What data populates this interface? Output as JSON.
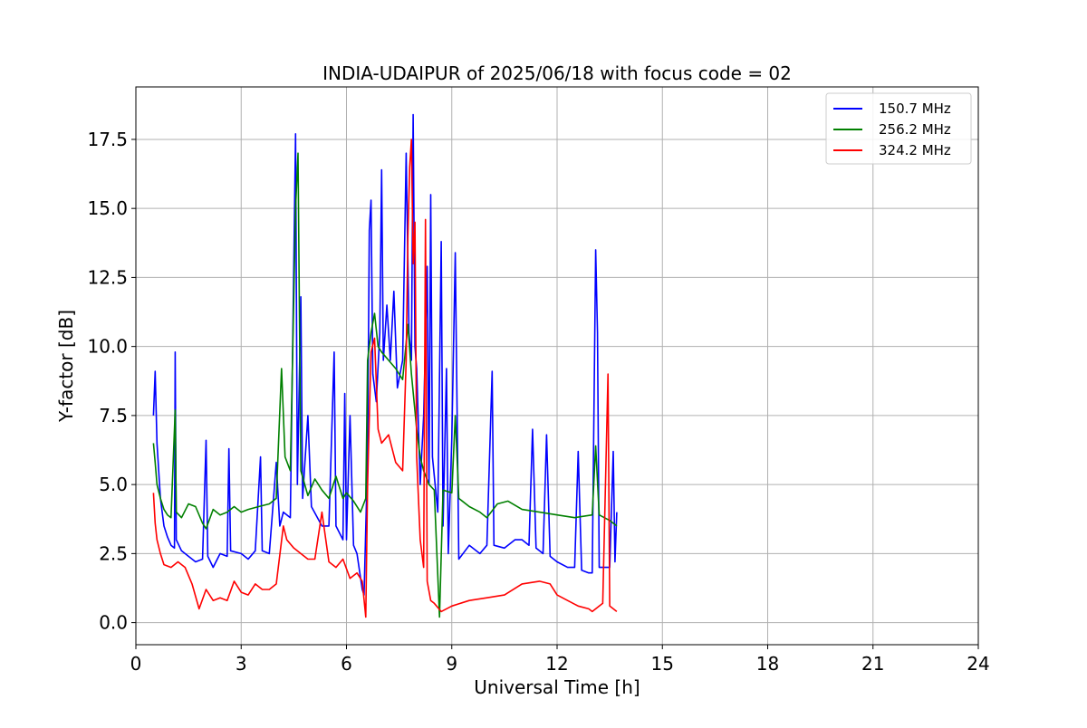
{
  "chart_data": {
    "type": "line",
    "title": "INDIA-UDAIPUR of 2025/06/18 with focus code = 02",
    "xlabel": "Universal Time [h]",
    "ylabel": "Y-factor [dB]",
    "xlim": [
      0,
      24
    ],
    "ylim": [
      -0.8,
      19.4
    ],
    "xticks": [
      0,
      3,
      6,
      9,
      12,
      15,
      18,
      21,
      24
    ],
    "xtick_labels": [
      "0",
      "3",
      "6",
      "9",
      "12",
      "15",
      "18",
      "21",
      "24"
    ],
    "yticks": [
      0,
      2.5,
      5,
      7.5,
      10,
      12.5,
      15,
      17.5
    ],
    "ytick_labels": [
      "0.0",
      "2.5",
      "5.0",
      "7.5",
      "10.0",
      "12.5",
      "15.0",
      "17.5"
    ],
    "grid": true,
    "legend_position": "top-right",
    "series": [
      {
        "name": "150.7 MHz",
        "color": "#0000ff",
        "points": [
          [
            0.5,
            7.5
          ],
          [
            0.55,
            9.1
          ],
          [
            0.6,
            6.5
          ],
          [
            0.7,
            4.5
          ],
          [
            0.8,
            3.5
          ],
          [
            0.9,
            3.1
          ],
          [
            1.0,
            2.8
          ],
          [
            1.1,
            2.7
          ],
          [
            1.12,
            9.8
          ],
          [
            1.15,
            3.0
          ],
          [
            1.3,
            2.6
          ],
          [
            1.5,
            2.4
          ],
          [
            1.7,
            2.2
          ],
          [
            1.9,
            2.3
          ],
          [
            2.0,
            6.6
          ],
          [
            2.05,
            2.4
          ],
          [
            2.2,
            2.0
          ],
          [
            2.4,
            2.5
          ],
          [
            2.6,
            2.4
          ],
          [
            2.65,
            6.3
          ],
          [
            2.7,
            2.6
          ],
          [
            3.0,
            2.5
          ],
          [
            3.2,
            2.3
          ],
          [
            3.4,
            2.6
          ],
          [
            3.55,
            6.0
          ],
          [
            3.6,
            2.6
          ],
          [
            3.8,
            2.5
          ],
          [
            4.0,
            5.8
          ],
          [
            4.1,
            3.5
          ],
          [
            4.2,
            4.0
          ],
          [
            4.4,
            3.8
          ],
          [
            4.55,
            17.7
          ],
          [
            4.6,
            5.0
          ],
          [
            4.7,
            11.8
          ],
          [
            4.75,
            4.5
          ],
          [
            4.9,
            7.5
          ],
          [
            5.0,
            4.2
          ],
          [
            5.3,
            3.5
          ],
          [
            5.5,
            3.5
          ],
          [
            5.65,
            9.8
          ],
          [
            5.7,
            3.5
          ],
          [
            5.9,
            3.0
          ],
          [
            5.95,
            8.3
          ],
          [
            6.0,
            3.0
          ],
          [
            6.1,
            7.5
          ],
          [
            6.2,
            2.8
          ],
          [
            6.3,
            2.5
          ],
          [
            6.45,
            1.2
          ],
          [
            6.5,
            1.0
          ],
          [
            6.6,
            6.0
          ],
          [
            6.65,
            14.2
          ],
          [
            6.7,
            15.3
          ],
          [
            6.75,
            9.0
          ],
          [
            6.85,
            8.0
          ],
          [
            6.95,
            10.5
          ],
          [
            7.0,
            16.4
          ],
          [
            7.05,
            9.5
          ],
          [
            7.15,
            11.5
          ],
          [
            7.25,
            9.5
          ],
          [
            7.35,
            12.0
          ],
          [
            7.45,
            8.5
          ],
          [
            7.6,
            9.5
          ],
          [
            7.7,
            17.0
          ],
          [
            7.78,
            10.5
          ],
          [
            7.85,
            9.5
          ],
          [
            7.9,
            18.4
          ],
          [
            7.95,
            10.0
          ],
          [
            8.0,
            9.2
          ],
          [
            8.1,
            5.0
          ],
          [
            8.2,
            7.5
          ],
          [
            8.3,
            12.9
          ],
          [
            8.35,
            5.0
          ],
          [
            8.4,
            15.5
          ],
          [
            8.45,
            6.0
          ],
          [
            8.6,
            4.0
          ],
          [
            8.7,
            13.8
          ],
          [
            8.75,
            3.5
          ],
          [
            8.85,
            9.2
          ],
          [
            8.9,
            2.5
          ],
          [
            9.0,
            6.7
          ],
          [
            9.1,
            13.4
          ],
          [
            9.2,
            2.3
          ],
          [
            9.5,
            2.8
          ],
          [
            9.8,
            2.5
          ],
          [
            10.0,
            2.8
          ],
          [
            10.15,
            9.1
          ],
          [
            10.2,
            2.8
          ],
          [
            10.5,
            2.7
          ],
          [
            10.8,
            3.0
          ],
          [
            11.0,
            3.0
          ],
          [
            11.2,
            2.8
          ],
          [
            11.3,
            7.0
          ],
          [
            11.4,
            2.7
          ],
          [
            11.6,
            2.5
          ],
          [
            11.7,
            6.8
          ],
          [
            11.8,
            2.4
          ],
          [
            12.0,
            2.2
          ],
          [
            12.3,
            2.0
          ],
          [
            12.5,
            2.0
          ],
          [
            12.6,
            6.2
          ],
          [
            12.7,
            1.9
          ],
          [
            12.9,
            1.8
          ],
          [
            13.0,
            1.8
          ],
          [
            13.1,
            13.5
          ],
          [
            13.15,
            10.5
          ],
          [
            13.2,
            2.0
          ],
          [
            13.5,
            2.0
          ],
          [
            13.6,
            6.2
          ],
          [
            13.65,
            2.2
          ],
          [
            13.7,
            4.0
          ]
        ]
      },
      {
        "name": "256.2 MHz",
        "color": "#008000",
        "points": [
          [
            0.5,
            6.5
          ],
          [
            0.55,
            5.8
          ],
          [
            0.6,
            5.0
          ],
          [
            0.7,
            4.5
          ],
          [
            0.8,
            4.1
          ],
          [
            0.9,
            3.9
          ],
          [
            1.0,
            3.8
          ],
          [
            1.12,
            7.7
          ],
          [
            1.15,
            4.0
          ],
          [
            1.3,
            3.8
          ],
          [
            1.5,
            4.3
          ],
          [
            1.7,
            4.2
          ],
          [
            1.9,
            3.6
          ],
          [
            2.0,
            3.4
          ],
          [
            2.2,
            4.1
          ],
          [
            2.4,
            3.9
          ],
          [
            2.6,
            4.0
          ],
          [
            2.8,
            4.2
          ],
          [
            3.0,
            4.0
          ],
          [
            3.2,
            4.1
          ],
          [
            3.5,
            4.2
          ],
          [
            3.8,
            4.3
          ],
          [
            4.0,
            4.5
          ],
          [
            4.15,
            9.2
          ],
          [
            4.25,
            6.0
          ],
          [
            4.4,
            5.5
          ],
          [
            4.55,
            15.0
          ],
          [
            4.62,
            17.0
          ],
          [
            4.7,
            5.5
          ],
          [
            4.9,
            4.6
          ],
          [
            5.1,
            5.2
          ],
          [
            5.3,
            4.8
          ],
          [
            5.5,
            4.5
          ],
          [
            5.7,
            5.3
          ],
          [
            5.9,
            4.5
          ],
          [
            6.0,
            4.7
          ],
          [
            6.2,
            4.4
          ],
          [
            6.4,
            4.0
          ],
          [
            6.55,
            4.5
          ],
          [
            6.6,
            9.5
          ],
          [
            6.7,
            10.5
          ],
          [
            6.8,
            11.2
          ],
          [
            6.9,
            10.0
          ],
          [
            7.0,
            9.8
          ],
          [
            7.2,
            9.5
          ],
          [
            7.4,
            9.2
          ],
          [
            7.6,
            8.8
          ],
          [
            7.75,
            10.8
          ],
          [
            7.85,
            9.0
          ],
          [
            8.0,
            7.0
          ],
          [
            8.1,
            6.0
          ],
          [
            8.2,
            5.5
          ],
          [
            8.35,
            5.0
          ],
          [
            8.5,
            4.8
          ],
          [
            8.65,
            0.2
          ],
          [
            8.75,
            4.8
          ],
          [
            9.0,
            4.7
          ],
          [
            9.1,
            7.5
          ],
          [
            9.2,
            4.5
          ],
          [
            9.5,
            4.2
          ],
          [
            9.8,
            4.0
          ],
          [
            10.0,
            3.8
          ],
          [
            10.3,
            4.3
          ],
          [
            10.6,
            4.4
          ],
          [
            11.0,
            4.1
          ],
          [
            11.5,
            4.0
          ],
          [
            12.0,
            3.9
          ],
          [
            12.5,
            3.8
          ],
          [
            13.0,
            3.9
          ],
          [
            13.1,
            6.4
          ],
          [
            13.2,
            3.9
          ],
          [
            13.5,
            3.7
          ],
          [
            13.7,
            3.5
          ]
        ]
      },
      {
        "name": "324.2 MHz",
        "color": "#ff0000",
        "points": [
          [
            0.5,
            4.7
          ],
          [
            0.55,
            3.6
          ],
          [
            0.6,
            3.0
          ],
          [
            0.7,
            2.5
          ],
          [
            0.8,
            2.1
          ],
          [
            1.0,
            2.0
          ],
          [
            1.2,
            2.2
          ],
          [
            1.4,
            2.0
          ],
          [
            1.6,
            1.4
          ],
          [
            1.8,
            0.5
          ],
          [
            2.0,
            1.2
          ],
          [
            2.2,
            0.8
          ],
          [
            2.4,
            0.9
          ],
          [
            2.6,
            0.8
          ],
          [
            2.8,
            1.5
          ],
          [
            3.0,
            1.1
          ],
          [
            3.2,
            1.0
          ],
          [
            3.4,
            1.4
          ],
          [
            3.6,
            1.2
          ],
          [
            3.8,
            1.2
          ],
          [
            4.0,
            1.4
          ],
          [
            4.2,
            3.5
          ],
          [
            4.3,
            3.0
          ],
          [
            4.5,
            2.7
          ],
          [
            4.7,
            2.5
          ],
          [
            4.9,
            2.3
          ],
          [
            5.1,
            2.3
          ],
          [
            5.3,
            4.0
          ],
          [
            5.5,
            2.2
          ],
          [
            5.7,
            2.0
          ],
          [
            5.9,
            2.3
          ],
          [
            6.1,
            1.6
          ],
          [
            6.3,
            1.8
          ],
          [
            6.45,
            1.5
          ],
          [
            6.55,
            0.2
          ],
          [
            6.6,
            5.0
          ],
          [
            6.7,
            9.8
          ],
          [
            6.8,
            10.3
          ],
          [
            6.9,
            7.0
          ],
          [
            7.0,
            6.5
          ],
          [
            7.2,
            6.8
          ],
          [
            7.4,
            5.8
          ],
          [
            7.6,
            5.5
          ],
          [
            7.7,
            9.5
          ],
          [
            7.75,
            14.0
          ],
          [
            7.8,
            16.5
          ],
          [
            7.85,
            17.5
          ],
          [
            7.9,
            13.0
          ],
          [
            7.95,
            14.5
          ],
          [
            8.0,
            6.0
          ],
          [
            8.1,
            3.0
          ],
          [
            8.2,
            2.0
          ],
          [
            8.25,
            14.6
          ],
          [
            8.3,
            1.5
          ],
          [
            8.4,
            0.8
          ],
          [
            8.5,
            0.7
          ],
          [
            8.7,
            0.4
          ],
          [
            9.0,
            0.6
          ],
          [
            9.5,
            0.8
          ],
          [
            10.0,
            0.9
          ],
          [
            10.5,
            1.0
          ],
          [
            11.0,
            1.4
          ],
          [
            11.5,
            1.5
          ],
          [
            11.8,
            1.4
          ],
          [
            12.0,
            1.0
          ],
          [
            12.3,
            0.8
          ],
          [
            12.6,
            0.6
          ],
          [
            12.9,
            0.5
          ],
          [
            13.0,
            0.4
          ],
          [
            13.3,
            0.7
          ],
          [
            13.45,
            9.0
          ],
          [
            13.5,
            0.6
          ],
          [
            13.7,
            0.4
          ]
        ]
      }
    ]
  }
}
